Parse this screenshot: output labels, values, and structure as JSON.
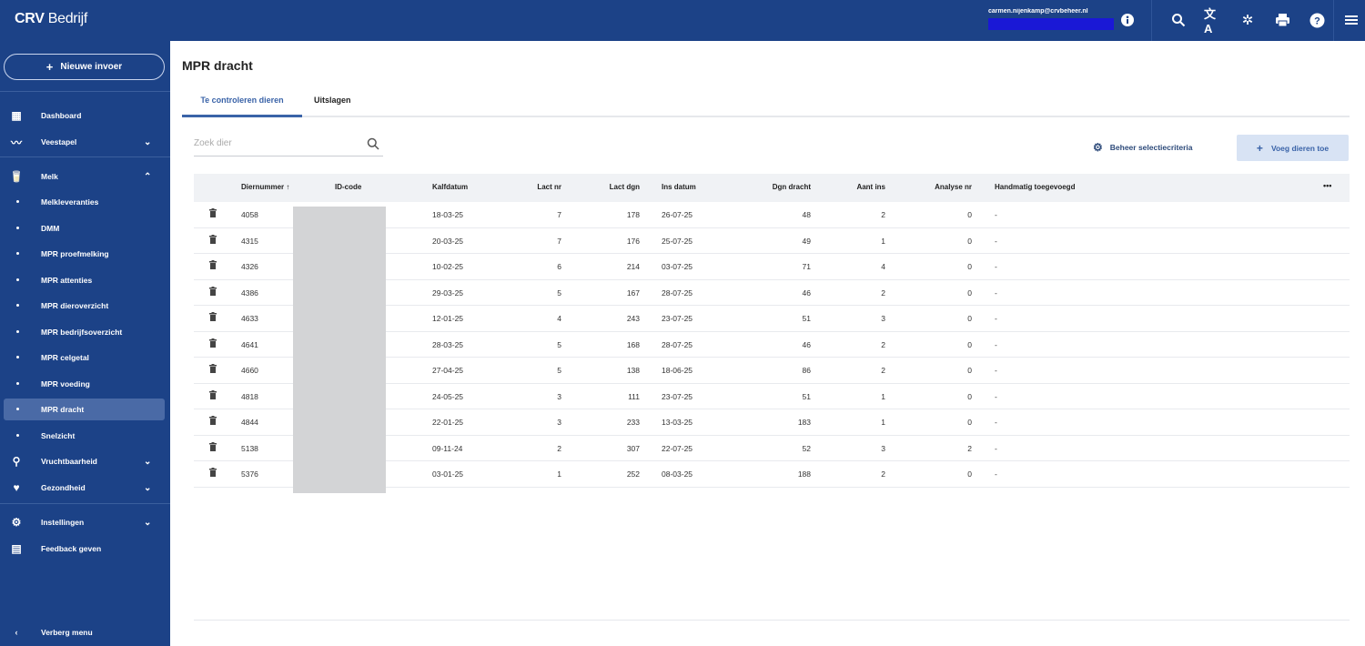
{
  "app": {
    "brand_bold": "CRV",
    "brand_light": " Bedrijf"
  },
  "header": {
    "user_email": "carmen.nijenkamp@crvbeheer.nl",
    "icons": [
      "account-icon",
      "search-icon",
      "translate-icon",
      "settings-icon",
      "print-icon",
      "help-icon",
      "menu-icon"
    ]
  },
  "sidebar": {
    "new_button": "Nieuwe invoer",
    "items": [
      {
        "label": "Dashboard",
        "icon": "dashboard-icon"
      },
      {
        "label": "Veestapel",
        "icon": "herd-icon",
        "chevron": "down"
      },
      {
        "label": "Melk",
        "icon": "milk-icon",
        "chevron": "up"
      },
      {
        "label": "Melkleveranties"
      },
      {
        "label": "DMM"
      },
      {
        "label": "MPR proefmelking"
      },
      {
        "label": "MPR attenties"
      },
      {
        "label": "MPR dieroverzicht"
      },
      {
        "label": "MPR bedrijfsoverzicht"
      },
      {
        "label": "MPR celgetal"
      },
      {
        "label": "MPR voeding"
      },
      {
        "label": "MPR dracht",
        "active": true
      },
      {
        "label": "Snelzicht"
      },
      {
        "label": "Vruchtbaarheid",
        "icon": "fertility-icon",
        "chevron": "down"
      },
      {
        "label": "Gezondheid",
        "icon": "heart-icon",
        "chevron": "down"
      },
      {
        "label": "Instellingen",
        "icon": "gear-icon",
        "chevron": "down"
      },
      {
        "label": "Feedback geven",
        "icon": "feedback-icon"
      }
    ],
    "hide_menu": "Verberg menu"
  },
  "main": {
    "title": "MPR dracht",
    "tabs": [
      {
        "label": "Te controleren dieren",
        "active": true
      },
      {
        "label": "Uitslagen"
      }
    ],
    "search": {
      "placeholder": "Zoek dier"
    },
    "beheer_label": "Beheer selectiecriteria",
    "add_label": "Voeg dieren toe",
    "table": {
      "columns": [
        "Diernummer",
        "ID-code",
        "Kalfdatum",
        "Lact nr",
        "Lact dgn",
        "Ins datum",
        "Dgn dracht",
        "Aant ins",
        "Analyse nr",
        "Handmatig toegevoegd"
      ],
      "more": "•••",
      "rows": [
        [
          "4058",
          "",
          "18-03-25",
          "7",
          "178",
          "26-07-25",
          "48",
          "2",
          "0",
          "-"
        ],
        [
          "4315",
          "",
          "20-03-25",
          "7",
          "176",
          "25-07-25",
          "49",
          "1",
          "0",
          "-"
        ],
        [
          "4326",
          "",
          "10-02-25",
          "6",
          "214",
          "03-07-25",
          "71",
          "4",
          "0",
          "-"
        ],
        [
          "4386",
          "",
          "29-03-25",
          "5",
          "167",
          "28-07-25",
          "46",
          "2",
          "0",
          "-"
        ],
        [
          "4633",
          "",
          "12-01-25",
          "4",
          "243",
          "23-07-25",
          "51",
          "3",
          "0",
          "-"
        ],
        [
          "4641",
          "",
          "28-03-25",
          "5",
          "168",
          "28-07-25",
          "46",
          "2",
          "0",
          "-"
        ],
        [
          "4660",
          "",
          "27-04-25",
          "5",
          "138",
          "18-06-25",
          "86",
          "2",
          "0",
          "-"
        ],
        [
          "4818",
          "",
          "24-05-25",
          "3",
          "111",
          "23-07-25",
          "51",
          "1",
          "0",
          "-"
        ],
        [
          "4844",
          "",
          "22-01-25",
          "3",
          "233",
          "13-03-25",
          "183",
          "1",
          "0",
          "-"
        ],
        [
          "5138",
          "",
          "09-11-24",
          "2",
          "307",
          "22-07-25",
          "52",
          "3",
          "2",
          "-"
        ],
        [
          "5376",
          "",
          "03-01-25",
          "1",
          "252",
          "08-03-25",
          "188",
          "2",
          "0",
          "-"
        ]
      ]
    }
  }
}
